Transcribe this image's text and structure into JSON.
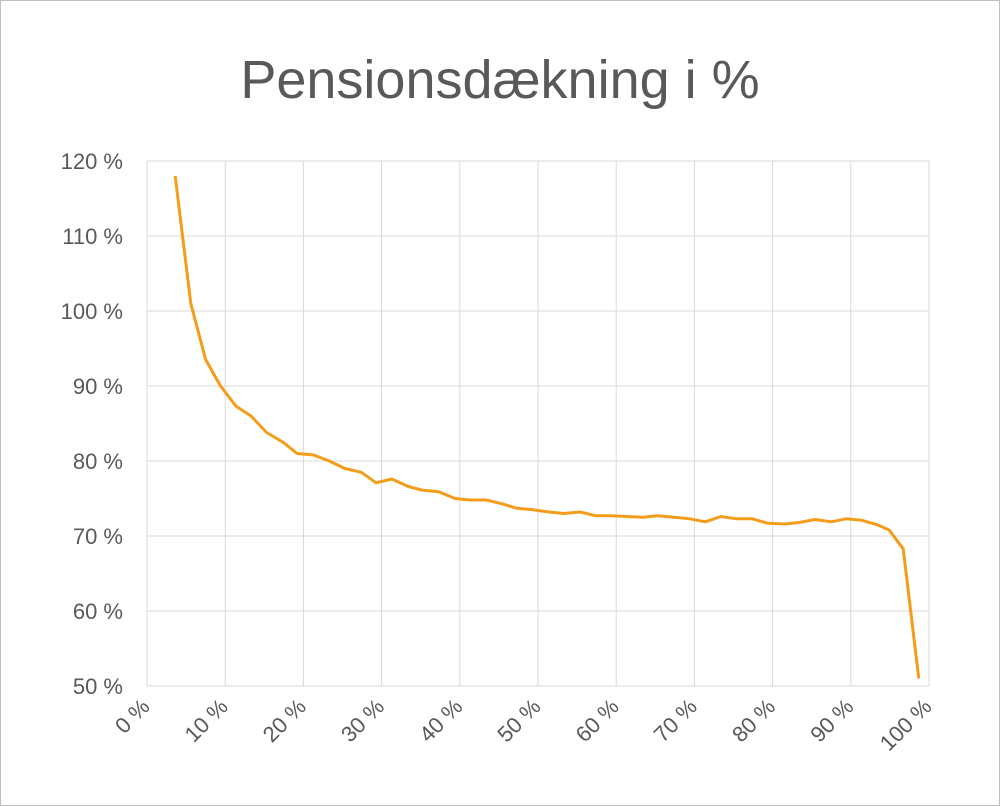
{
  "chart_data": {
    "type": "line",
    "title": "Pensionsdækning i %",
    "x": [
      3.6,
      5.6,
      7.5,
      9.4,
      11.4,
      13.3,
      15.3,
      17.4,
      19.2,
      21.3,
      23.3,
      25.3,
      27.4,
      29.3,
      31.3,
      33.4,
      35.3,
      37.3,
      39.4,
      41.3,
      43.4,
      45.4,
      47.3,
      49.4,
      51.4,
      53.3,
      55.4,
      57.4,
      59.3,
      61.4,
      63.4,
      65.3,
      67.4,
      69.4,
      71.4,
      73.4,
      75.4,
      77.4,
      79.4,
      81.5,
      83.4,
      85.4,
      87.5,
      89.4,
      91.4,
      93.4,
      94.9,
      96.7,
      98.7
    ],
    "values": [
      118,
      101,
      93.5,
      90,
      87.3,
      86,
      83.8,
      82.5,
      81,
      80.8,
      80,
      79,
      78.5,
      77.1,
      77.6,
      76.6,
      76.1,
      75.9,
      75,
      74.8,
      74.8,
      74.3,
      73.7,
      73.5,
      73.2,
      73,
      73.2,
      72.7,
      72.7,
      72.6,
      72.5,
      72.7,
      72.5,
      72.3,
      71.9,
      72.6,
      72.3,
      72.3,
      71.7,
      71.6,
      71.8,
      72.2,
      71.9,
      72.3,
      72.1,
      71.5,
      70.8,
      68.3,
      51
    ],
    "color": "#f59c1a",
    "xlim": [
      0,
      100
    ],
    "xticks": [
      {
        "value": 0,
        "label": "0 %"
      },
      {
        "value": 10,
        "label": "10 %"
      },
      {
        "value": 20,
        "label": "20 %"
      },
      {
        "value": 30,
        "label": "30 %"
      },
      {
        "value": 40,
        "label": "40 %"
      },
      {
        "value": 50,
        "label": "50 %"
      },
      {
        "value": 60,
        "label": "60 %"
      },
      {
        "value": 70,
        "label": "70 %"
      },
      {
        "value": 80,
        "label": "80 %"
      },
      {
        "value": 90,
        "label": "90 %"
      },
      {
        "value": 100,
        "label": "100 %"
      }
    ],
    "ylim": [
      50,
      120
    ],
    "yticks": [
      {
        "value": 50,
        "label": "50 %"
      },
      {
        "value": 60,
        "label": "60 %"
      },
      {
        "value": 70,
        "label": "70 %"
      },
      {
        "value": 80,
        "label": "80 %"
      },
      {
        "value": 90,
        "label": "90 %"
      },
      {
        "value": 100,
        "label": "100 %"
      },
      {
        "value": 110,
        "label": "110 %"
      },
      {
        "value": 120,
        "label": "120 %"
      }
    ],
    "grid": true
  }
}
